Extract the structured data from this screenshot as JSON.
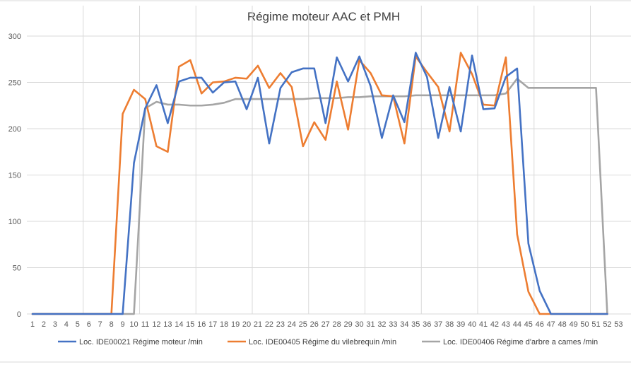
{
  "chart_data": {
    "type": "line",
    "title": "Régime moteur AAC et PMH",
    "xlabel": "",
    "ylabel": "",
    "ylim": [
      0,
      300
    ],
    "y_ticks": [
      0,
      50,
      100,
      150,
      200,
      250,
      300
    ],
    "grid": "vertical and horizontal",
    "legend": "bottom",
    "x": [
      1,
      2,
      3,
      4,
      5,
      6,
      7,
      8,
      9,
      10,
      11,
      12,
      13,
      14,
      15,
      16,
      17,
      18,
      19,
      20,
      21,
      22,
      23,
      24,
      25,
      26,
      27,
      28,
      29,
      30,
      31,
      32,
      33,
      34,
      35,
      36,
      37,
      38,
      39,
      40,
      41,
      42,
      43,
      44,
      45,
      46,
      47,
      48,
      49,
      50,
      51,
      52,
      53
    ],
    "series": [
      {
        "name": "Loc. IDE00021 Régime moteur  /min",
        "color": "#4472c4",
        "values": [
          0,
          0,
          0,
          0,
          0,
          0,
          0,
          0,
          0,
          163,
          222,
          247,
          206,
          251,
          255,
          255,
          239,
          250,
          251,
          221,
          255,
          184,
          244,
          261,
          265,
          265,
          206,
          277,
          251,
          278,
          246,
          190,
          236,
          207,
          282,
          256,
          190,
          245,
          197,
          279,
          221,
          222,
          256,
          265,
          76,
          25,
          0,
          0,
          0,
          0,
          0,
          0,
          null
        ]
      },
      {
        "name": "Loc. IDE00405 Régime du vilebrequin  /min",
        "color": "#ed7d31",
        "values": [
          0,
          0,
          0,
          0,
          0,
          0,
          0,
          0,
          216,
          242,
          232,
          181,
          175,
          267,
          274,
          238,
          250,
          251,
          255,
          254,
          268,
          244,
          260,
          245,
          181,
          207,
          188,
          251,
          199,
          274,
          260,
          236,
          235,
          184,
          278,
          261,
          245,
          197,
          282,
          259,
          226,
          225,
          277,
          86,
          24,
          0,
          0,
          0,
          0,
          0,
          0,
          0,
          null
        ]
      },
      {
        "name": "Loc. IDE00406 Régime d'arbre a cames  /min",
        "color": "#a5a5a5",
        "values": [
          0,
          0,
          0,
          0,
          0,
          0,
          0,
          0,
          0,
          0,
          222,
          229,
          226,
          226,
          225,
          225,
          226,
          228,
          232,
          232,
          232,
          232,
          232,
          232,
          232,
          233,
          233,
          233,
          234,
          234,
          235,
          235,
          235,
          235,
          236,
          236,
          236,
          236,
          236,
          236,
          236,
          236,
          238,
          254,
          244,
          244,
          244,
          244,
          244,
          244,
          244,
          0,
          null
        ]
      }
    ]
  }
}
